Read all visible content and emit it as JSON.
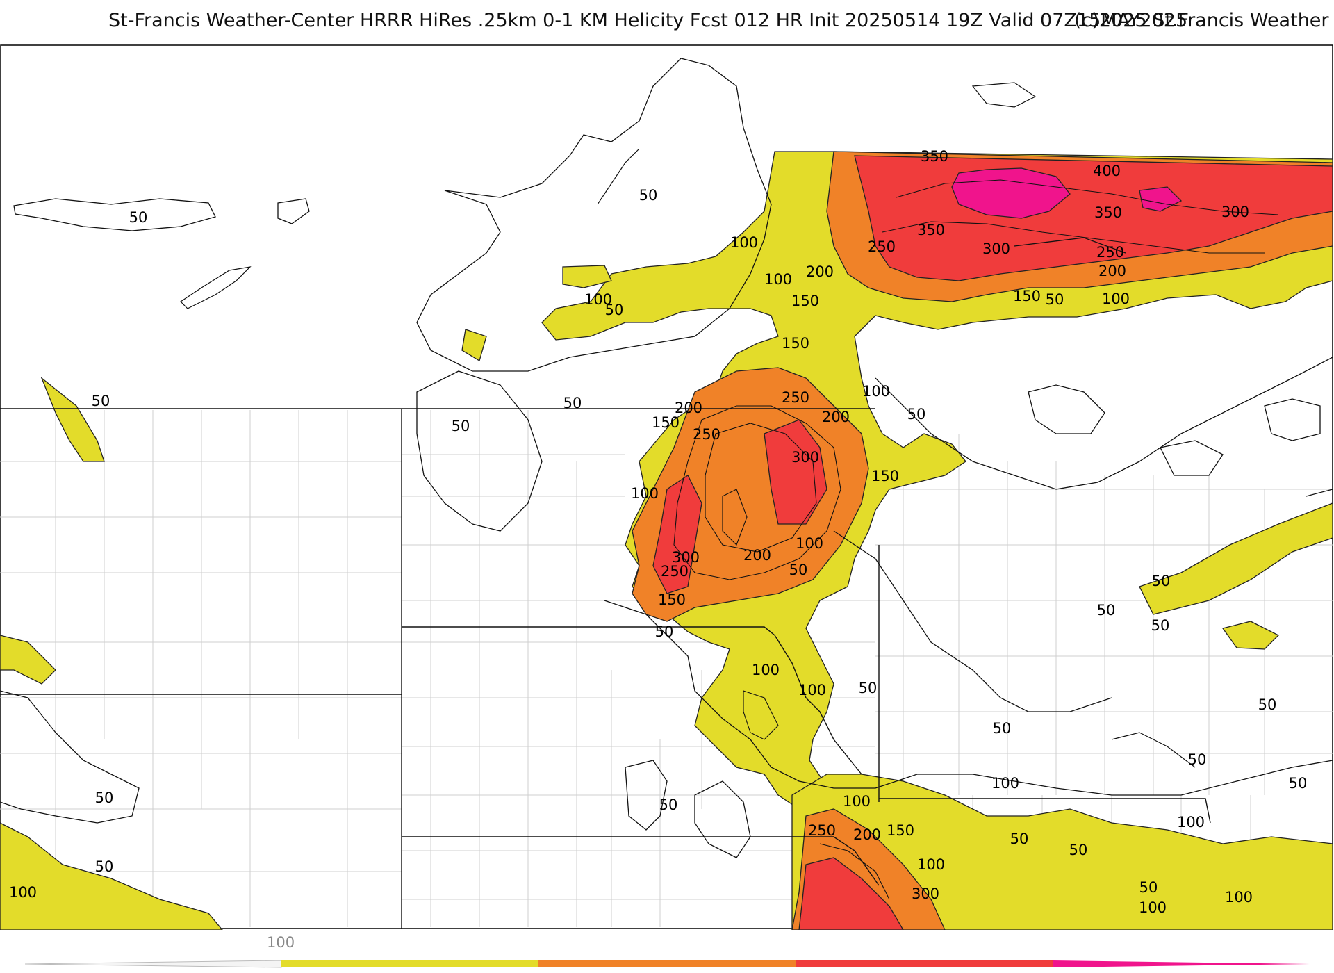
{
  "header": {
    "title": "St-Francis Weather-Center HRRR HiRes .25km 0-1 KM Helicity Fcst 012 HR Init 20250514 19Z  Valid 07Z15MAY2025",
    "credit": "(c)2025 St.Francis Weather"
  },
  "legend": {
    "tick_label": "100",
    "colors": {
      "level_100": "#e3dc2a",
      "level_200": "#f08228",
      "level_300": "#f03c3c",
      "level_400": "#f0148c"
    }
  },
  "contour_labels": [
    {
      "text": "50"
    },
    {
      "text": "50"
    },
    {
      "text": "100"
    },
    {
      "text": "100"
    },
    {
      "text": "50"
    },
    {
      "text": "100"
    },
    {
      "text": "150"
    },
    {
      "text": "200"
    },
    {
      "text": "250"
    },
    {
      "text": "350"
    },
    {
      "text": "350"
    },
    {
      "text": "400"
    },
    {
      "text": "300"
    },
    {
      "text": "350"
    },
    {
      "text": "300"
    },
    {
      "text": "250"
    },
    {
      "text": "200"
    },
    {
      "text": "150"
    },
    {
      "text": "50"
    },
    {
      "text": "100"
    },
    {
      "text": "150"
    },
    {
      "text": "50"
    },
    {
      "text": "50"
    },
    {
      "text": "50"
    },
    {
      "text": "100"
    },
    {
      "text": "250"
    },
    {
      "text": "200"
    },
    {
      "text": "150"
    },
    {
      "text": "250"
    },
    {
      "text": "200"
    },
    {
      "text": "300"
    },
    {
      "text": "50"
    },
    {
      "text": "150"
    },
    {
      "text": "100"
    },
    {
      "text": "300"
    },
    {
      "text": "250"
    },
    {
      "text": "200"
    },
    {
      "text": "100"
    },
    {
      "text": "50"
    },
    {
      "text": "150"
    },
    {
      "text": "50"
    },
    {
      "text": "50"
    },
    {
      "text": "100"
    },
    {
      "text": "100"
    },
    {
      "text": "50"
    },
    {
      "text": "50"
    },
    {
      "text": "50"
    },
    {
      "text": "50"
    },
    {
      "text": "50"
    },
    {
      "text": "50"
    },
    {
      "text": "50"
    },
    {
      "text": "100"
    },
    {
      "text": "100"
    },
    {
      "text": "250"
    },
    {
      "text": "200"
    },
    {
      "text": "150"
    },
    {
      "text": "100"
    },
    {
      "text": "300"
    },
    {
      "text": "50"
    },
    {
      "text": "100"
    },
    {
      "text": "50"
    },
    {
      "text": "100"
    },
    {
      "text": "100"
    },
    {
      "text": "50"
    },
    {
      "text": "50"
    },
    {
      "text": "50"
    },
    {
      "text": "100"
    },
    {
      "text": "50"
    }
  ]
}
